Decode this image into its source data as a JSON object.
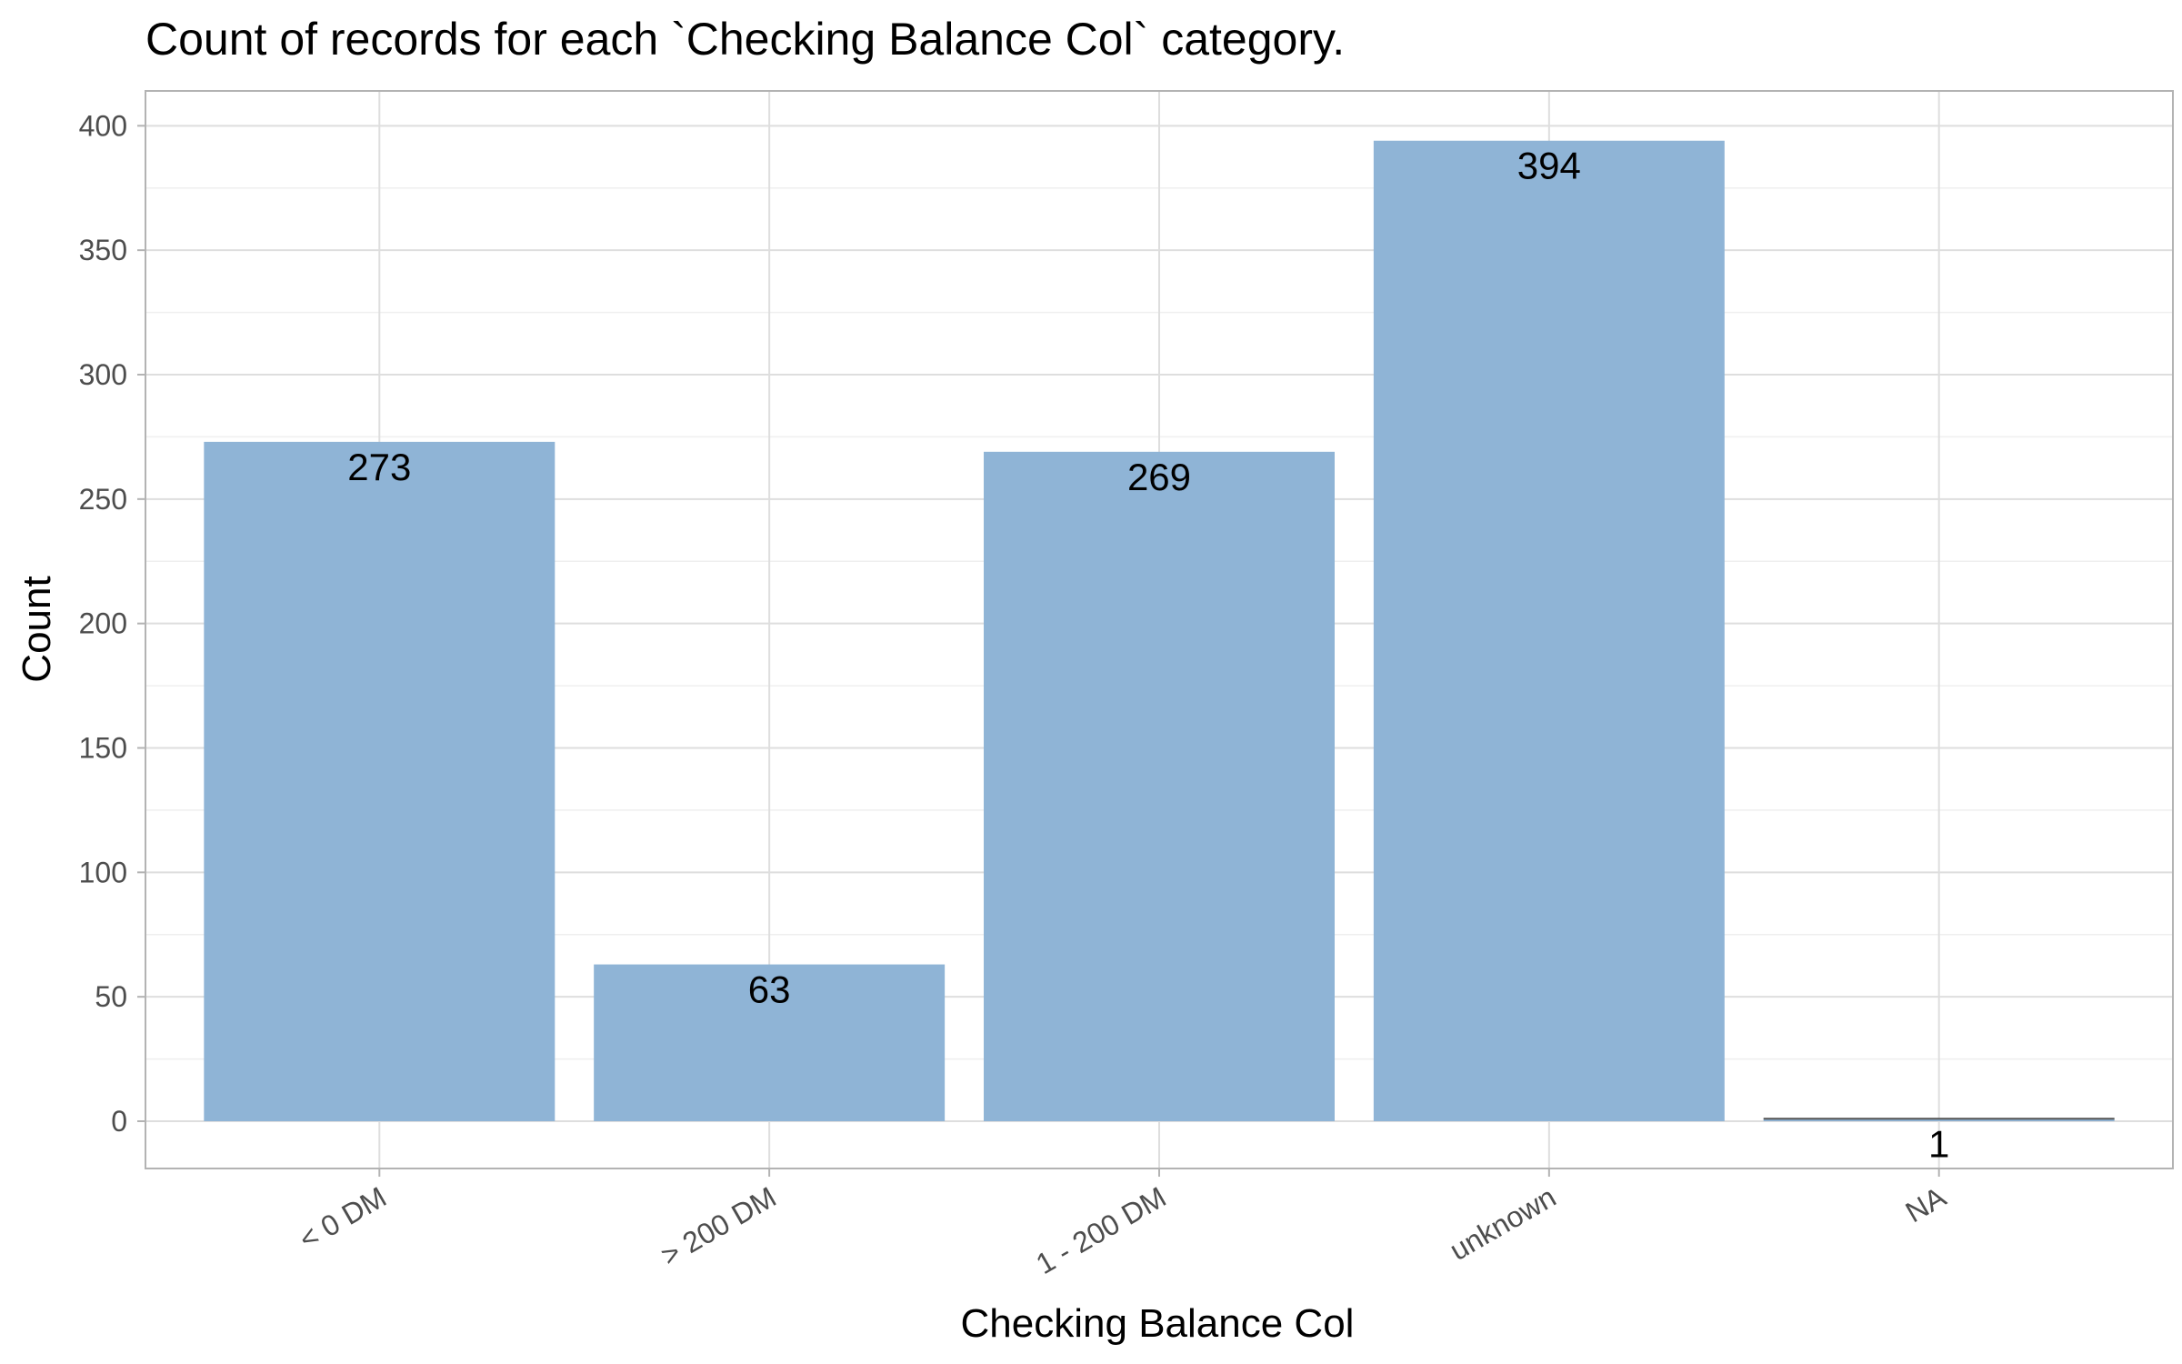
{
  "chart_data": {
    "type": "bar",
    "title": "Count of records for each `Checking Balance Col` category.",
    "xlabel": "Checking Balance Col",
    "ylabel": "Count",
    "categories": [
      "< 0 DM",
      "> 200 DM",
      "1 - 200 DM",
      "unknown",
      "NA"
    ],
    "values": [
      273,
      63,
      269,
      394,
      1
    ],
    "data_labels": [
      "273",
      "63",
      "269",
      "394",
      "1"
    ],
    "yticks": [
      0,
      50,
      100,
      150,
      200,
      250,
      300,
      350,
      400
    ],
    "ylim": [
      -19,
      414
    ],
    "grid": true,
    "legend": "none",
    "colors": {
      "bar": "#8fb4d6",
      "panel_border": "#b3b3b3",
      "grid_major": "#dedede",
      "grid_minor": "#efefef",
      "tick_text": "#4d4d4d",
      "na_bar": "#555555"
    }
  }
}
